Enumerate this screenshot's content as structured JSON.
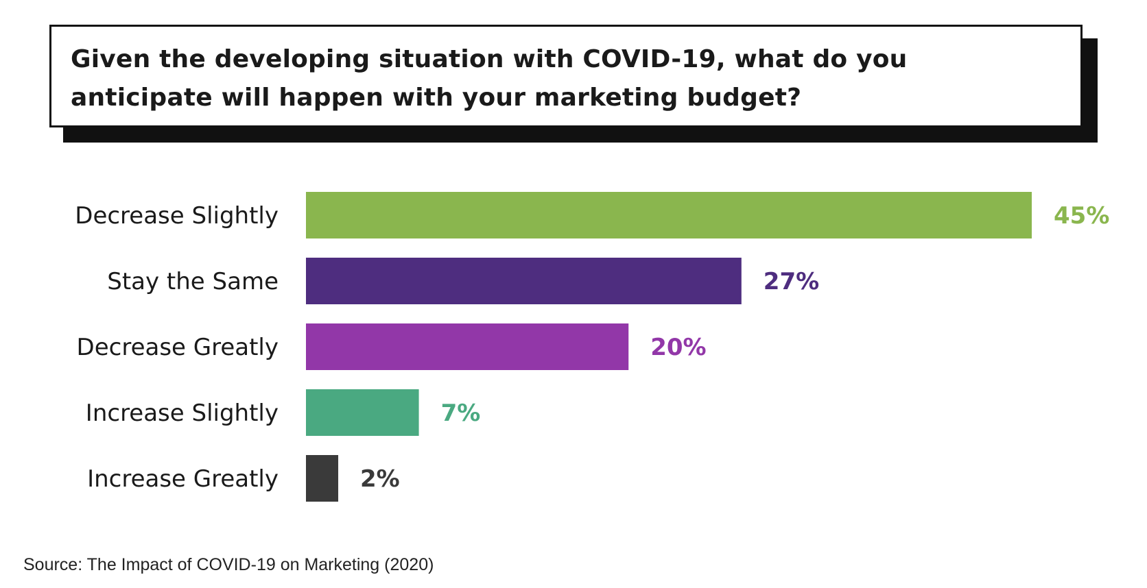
{
  "chart_data": {
    "type": "bar",
    "orientation": "horizontal",
    "title": "Given the developing situation with COVID-19, what do you anticipate will happen with your marketing budget?",
    "categories": [
      "Decrease Slightly",
      "Stay the Same",
      "Decrease Greatly",
      "Increase Slightly",
      "Increase Greatly"
    ],
    "values": [
      45,
      27,
      20,
      7,
      2
    ],
    "value_labels": [
      "45%",
      "27%",
      "20%",
      "7%",
      "2%"
    ],
    "unit": "%",
    "colors": [
      "#8ab64e",
      "#4e2d7f",
      "#9237a8",
      "#4aa981",
      "#3a3a3a"
    ],
    "grid": false,
    "legend": "none"
  },
  "footer": {
    "source": "Source: The Impact of COVID-19 on Marketing (2020)"
  }
}
